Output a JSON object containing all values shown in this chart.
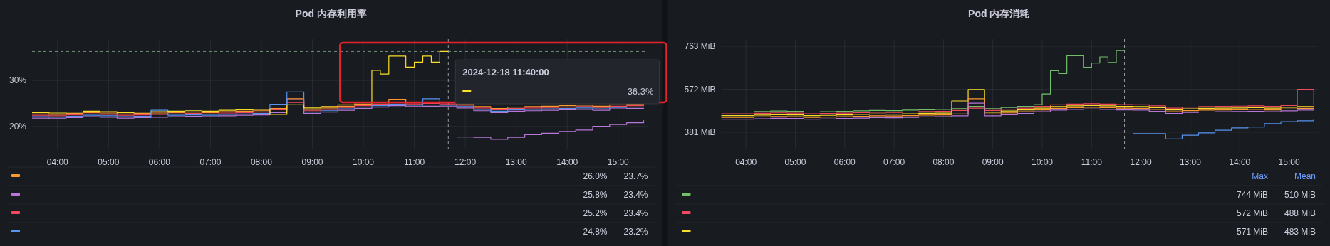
{
  "chart_data": [
    {
      "type": "step",
      "title": "Pod 内存利用率",
      "grid": true,
      "line_style": "solid",
      "x": [
        "2024-12-18T03:30",
        "2024-12-18T03:50",
        "2024-12-18T04:10",
        "2024-12-18T04:30",
        "2024-12-18T04:50",
        "2024-12-18T05:10",
        "2024-12-18T05:30",
        "2024-12-18T05:50",
        "2024-12-18T06:10",
        "2024-12-18T06:30",
        "2024-12-18T06:50",
        "2024-12-18T07:10",
        "2024-12-18T07:30",
        "2024-12-18T07:50",
        "2024-12-18T08:10",
        "2024-12-18T08:30",
        "2024-12-18T08:50",
        "2024-12-18T09:10",
        "2024-12-18T09:30",
        "2024-12-18T09:50",
        "2024-12-18T10:10",
        "2024-12-18T10:30",
        "2024-12-18T10:50",
        "2024-12-18T11:10",
        "2024-12-18T11:30",
        "2024-12-18T11:50",
        "2024-12-18T12:10",
        "2024-12-18T12:30",
        "2024-12-18T12:50",
        "2024-12-18T13:10",
        "2024-12-18T13:30",
        "2024-12-18T13:50",
        "2024-12-18T14:10",
        "2024-12-18T14:30",
        "2024-12-18T14:50",
        "2024-12-18T15:10",
        "2024-12-18T15:30"
      ],
      "xlim": [
        "2024-12-18T03:30",
        "2024-12-18T15:35"
      ],
      "xticks": [
        {
          "value": "2024-12-18T04:00",
          "label": "04:00"
        },
        {
          "value": "2024-12-18T05:00",
          "label": "05:00"
        },
        {
          "value": "2024-12-18T06:00",
          "label": "06:00"
        },
        {
          "value": "2024-12-18T07:00",
          "label": "07:00"
        },
        {
          "value": "2024-12-18T08:00",
          "label": "08:00"
        },
        {
          "value": "2024-12-18T09:00",
          "label": "09:00"
        },
        {
          "value": "2024-12-18T10:00",
          "label": "10:00"
        },
        {
          "value": "2024-12-18T11:00",
          "label": "11:00"
        },
        {
          "value": "2024-12-18T12:00",
          "label": "12:00"
        },
        {
          "value": "2024-12-18T13:00",
          "label": "13:00"
        },
        {
          "value": "2024-12-18T14:00",
          "label": "14:00"
        },
        {
          "value": "2024-12-18T15:00",
          "label": "15:00"
        }
      ],
      "ylim": [
        15,
        39
      ],
      "yticks": [
        {
          "value": 20,
          "label": "20%"
        },
        {
          "value": 30,
          "label": "30%"
        }
      ],
      "series": [
        {
          "color": "#ff9830",
          "values": [
            22.7,
            22.6,
            22.8,
            23.0,
            22.9,
            22.7,
            22.8,
            22.9,
            23.0,
            23.1,
            23.0,
            23.2,
            23.3,
            23.4,
            23.9,
            26.0,
            23.7,
            24.0,
            24.4,
            24.8,
            25.1,
            25.9,
            25.2,
            25.3,
            25.2,
            24.9,
            24.3,
            23.9,
            24.2,
            24.3,
            24.4,
            24.5,
            24.6,
            24.4,
            24.7,
            24.8,
            24.7
          ]
        },
        {
          "color": "#b877d9",
          "values": [
            21.8,
            21.7,
            21.9,
            22.1,
            22.0,
            21.8,
            21.9,
            22.0,
            22.1,
            22.2,
            22.1,
            22.3,
            22.4,
            22.5,
            23.0,
            25.8,
            22.8,
            23.1,
            23.5,
            23.9,
            24.2,
            24.5,
            24.3,
            24.4,
            24.3,
            24.0,
            23.4,
            23.0,
            23.3,
            23.4,
            23.5,
            23.6,
            23.7,
            23.5,
            23.8,
            23.9,
            23.8
          ]
        },
        {
          "color": "#f2495c",
          "values": [
            22.4,
            22.3,
            22.5,
            22.7,
            22.6,
            22.4,
            22.5,
            22.6,
            22.7,
            22.8,
            22.7,
            22.9,
            23.0,
            23.1,
            23.6,
            25.2,
            23.4,
            23.7,
            24.1,
            24.5,
            24.8,
            25.1,
            24.9,
            25.0,
            24.9,
            24.6,
            24.0,
            23.6,
            23.9,
            24.0,
            24.1,
            24.2,
            24.3,
            24.1,
            24.4,
            24.5,
            24.4
          ]
        },
        {
          "color": "#5794f2",
          "values": [
            22.1,
            22.0,
            22.2,
            22.4,
            22.3,
            22.1,
            22.2,
            23.5,
            22.4,
            22.5,
            22.4,
            22.6,
            22.7,
            22.8,
            24.8,
            27.5,
            23.1,
            23.4,
            23.8,
            24.2,
            24.5,
            24.8,
            24.6,
            26.0,
            24.6,
            24.3,
            23.7,
            23.3,
            23.6,
            23.7,
            23.8,
            23.9,
            24.0,
            23.8,
            24.1,
            24.2,
            24.1
          ]
        },
        {
          "color": "#fade2a",
          "x": [
            "2024-12-18T03:30",
            "2024-12-18T03:50",
            "2024-12-18T04:10",
            "2024-12-18T04:30",
            "2024-12-18T04:50",
            "2024-12-18T05:10",
            "2024-12-18T05:30",
            "2024-12-18T05:50",
            "2024-12-18T06:10",
            "2024-12-18T06:30",
            "2024-12-18T06:50",
            "2024-12-18T07:10",
            "2024-12-18T07:30",
            "2024-12-18T07:50",
            "2024-12-18T08:10",
            "2024-12-18T08:30",
            "2024-12-18T08:50",
            "2024-12-18T09:10",
            "2024-12-18T09:30",
            "2024-12-18T09:50",
            "2024-12-18T10:10",
            "2024-12-18T10:20",
            "2024-12-18T10:30",
            "2024-12-18T10:50",
            "2024-12-18T11:00",
            "2024-12-18T11:10",
            "2024-12-18T11:20",
            "2024-12-18T11:30",
            "2024-12-18T11:40"
          ],
          "values": [
            23.0,
            22.9,
            23.1,
            23.3,
            23.2,
            23.0,
            23.1,
            23.2,
            23.3,
            23.4,
            23.3,
            23.5,
            23.6,
            23.7,
            22.6,
            24.7,
            24.0,
            24.3,
            24.7,
            25.1,
            32.2,
            31.4,
            35.3,
            32.9,
            34.0,
            35.3,
            34.0,
            36.3,
            36.3
          ]
        },
        {
          "color": "#b877d9",
          "x": [
            "2024-12-18T11:50",
            "2024-12-18T12:10",
            "2024-12-18T12:30",
            "2024-12-18T12:50",
            "2024-12-18T13:10",
            "2024-12-18T13:30",
            "2024-12-18T13:50",
            "2024-12-18T14:10",
            "2024-12-18T14:30",
            "2024-12-18T14:50",
            "2024-12-18T15:10",
            "2024-12-18T15:30"
          ],
          "values": [
            17.7,
            17.6,
            17.2,
            17.6,
            18.2,
            18.5,
            18.9,
            19.2,
            20.0,
            20.4,
            20.8,
            21.3
          ]
        }
      ],
      "ref_lines": [
        {
          "axis": "y",
          "value": 36.3,
          "color": "#6f8f7a",
          "line_style": "dashed"
        },
        {
          "axis": "x",
          "value": "2024-12-18T11:40",
          "color": "#9a9aa6",
          "line_style": "dashed"
        }
      ],
      "annotations": [
        "2024-12-18 11:40:00",
        "36.3%",
        "26.0%",
        "23.7%",
        "25.8%",
        "23.4%",
        "25.2%",
        "23.4%",
        "24.8%",
        "23.2%"
      ]
    },
    {
      "type": "step",
      "title": "Pod 内存消耗",
      "grid": true,
      "line_style": "solid",
      "x": [
        "2024-12-18T03:30",
        "2024-12-18T03:50",
        "2024-12-18T04:10",
        "2024-12-18T04:30",
        "2024-12-18T04:50",
        "2024-12-18T05:10",
        "2024-12-18T05:30",
        "2024-12-18T05:50",
        "2024-12-18T06:10",
        "2024-12-18T06:30",
        "2024-12-18T06:50",
        "2024-12-18T07:10",
        "2024-12-18T07:30",
        "2024-12-18T07:50",
        "2024-12-18T08:10",
        "2024-12-18T08:30",
        "2024-12-18T08:50",
        "2024-12-18T09:10",
        "2024-12-18T09:30",
        "2024-12-18T09:50",
        "2024-12-18T10:10",
        "2024-12-18T10:30",
        "2024-12-18T10:50",
        "2024-12-18T11:10",
        "2024-12-18T11:30",
        "2024-12-18T11:50",
        "2024-12-18T12:10",
        "2024-12-18T12:30",
        "2024-12-18T12:50",
        "2024-12-18T13:10",
        "2024-12-18T13:30",
        "2024-12-18T13:50",
        "2024-12-18T14:10",
        "2024-12-18T14:30",
        "2024-12-18T14:50",
        "2024-12-18T15:10",
        "2024-12-18T15:30"
      ],
      "xlim": [
        "2024-12-18T03:30",
        "2024-12-18T15:35"
      ],
      "xticks": [
        {
          "value": "2024-12-18T04:00",
          "label": "04:00"
        },
        {
          "value": "2024-12-18T05:00",
          "label": "05:00"
        },
        {
          "value": "2024-12-18T06:00",
          "label": "06:00"
        },
        {
          "value": "2024-12-18T07:00",
          "label": "07:00"
        },
        {
          "value": "2024-12-18T08:00",
          "label": "08:00"
        },
        {
          "value": "2024-12-18T09:00",
          "label": "09:00"
        },
        {
          "value": "2024-12-18T10:00",
          "label": "10:00"
        },
        {
          "value": "2024-12-18T11:00",
          "label": "11:00"
        },
        {
          "value": "2024-12-18T12:00",
          "label": "12:00"
        },
        {
          "value": "2024-12-18T13:00",
          "label": "13:00"
        },
        {
          "value": "2024-12-18T14:00",
          "label": "14:00"
        },
        {
          "value": "2024-12-18T15:00",
          "label": "15:00"
        }
      ],
      "ylim": [
        305,
        795
      ],
      "yticks": [
        {
          "value": 381,
          "label": "381 MiB"
        },
        {
          "value": 572,
          "label": "572 MiB"
        },
        {
          "value": 763,
          "label": "763 MiB"
        }
      ],
      "series": [
        {
          "color": "#73bf69",
          "x": [
            "2024-12-18T03:30",
            "2024-12-18T03:50",
            "2024-12-18T04:10",
            "2024-12-18T04:30",
            "2024-12-18T04:50",
            "2024-12-18T05:10",
            "2024-12-18T05:30",
            "2024-12-18T05:50",
            "2024-12-18T06:10",
            "2024-12-18T06:30",
            "2024-12-18T06:50",
            "2024-12-18T07:10",
            "2024-12-18T07:30",
            "2024-12-18T07:50",
            "2024-12-18T08:10",
            "2024-12-18T08:30",
            "2024-12-18T08:50",
            "2024-12-18T09:10",
            "2024-12-18T09:30",
            "2024-12-18T09:50",
            "2024-12-18T10:00",
            "2024-12-18T10:10",
            "2024-12-18T10:20",
            "2024-12-18T10:30",
            "2024-12-18T10:50",
            "2024-12-18T11:00",
            "2024-12-18T11:10",
            "2024-12-18T11:20",
            "2024-12-18T11:30",
            "2024-12-18T11:40"
          ],
          "values": [
            471,
            471,
            473,
            475,
            474,
            471,
            472,
            474,
            476,
            478,
            477,
            479,
            481,
            482,
            486,
            496,
            486,
            491,
            496,
            504,
            551,
            655,
            642,
            721,
            670,
            689,
            716,
            691,
            744,
            744
          ]
        },
        {
          "color": "#f2495c",
          "values": [
            463,
            463,
            465,
            467,
            466,
            463,
            464,
            466,
            468,
            470,
            469,
            471,
            473,
            474,
            478,
            488,
            478,
            483,
            488,
            496,
            503,
            506,
            508,
            506,
            504,
            503,
            498,
            488,
            493,
            495,
            496,
            497,
            498,
            496,
            500,
            572,
            501
          ]
        },
        {
          "color": "#fade2a",
          "values": [
            455,
            455,
            457,
            459,
            458,
            455,
            456,
            458,
            460,
            462,
            461,
            463,
            465,
            466,
            520,
            571,
            470,
            475,
            480,
            488,
            495,
            498,
            500,
            498,
            496,
            495,
            490,
            480,
            485,
            487,
            488,
            489,
            490,
            488,
            492,
            495,
            493
          ]
        },
        {
          "color": "#ff9830",
          "values": [
            447,
            447,
            449,
            451,
            450,
            447,
            448,
            450,
            452,
            454,
            453,
            455,
            457,
            458,
            462,
            530,
            462,
            467,
            472,
            480,
            487,
            490,
            492,
            490,
            488,
            487,
            482,
            472,
            477,
            479,
            480,
            481,
            482,
            480,
            484,
            487,
            485
          ]
        },
        {
          "color": "#b877d9",
          "values": [
            439,
            439,
            441,
            443,
            442,
            439,
            440,
            442,
            444,
            446,
            445,
            447,
            449,
            450,
            454,
            510,
            454,
            459,
            464,
            472,
            479,
            482,
            484,
            482,
            480,
            479,
            474,
            464,
            469,
            471,
            472,
            473,
            474,
            472,
            476,
            479,
            477
          ]
        },
        {
          "color": "#5794f2",
          "x": [
            "2024-12-18T11:50",
            "2024-12-18T12:10",
            "2024-12-18T12:30",
            "2024-12-18T12:50",
            "2024-12-18T13:10",
            "2024-12-18T13:30",
            "2024-12-18T13:50",
            "2024-12-18T14:10",
            "2024-12-18T14:30",
            "2024-12-18T14:50",
            "2024-12-18T15:10",
            "2024-12-18T15:30"
          ],
          "values": [
            375,
            375,
            351,
            368,
            378,
            390,
            400,
            404,
            419,
            428,
            432,
            438
          ]
        }
      ],
      "ref_lines": [
        {
          "axis": "x",
          "value": "2024-12-18T11:40",
          "color": "#9a9aa6",
          "line_style": "dashed"
        }
      ],
      "annotations": [
        "Max",
        "Mean",
        "744 MiB",
        "510 MiB",
        "572 MiB",
        "488 MiB",
        "571 MiB",
        "483 MiB"
      ]
    }
  ]
}
